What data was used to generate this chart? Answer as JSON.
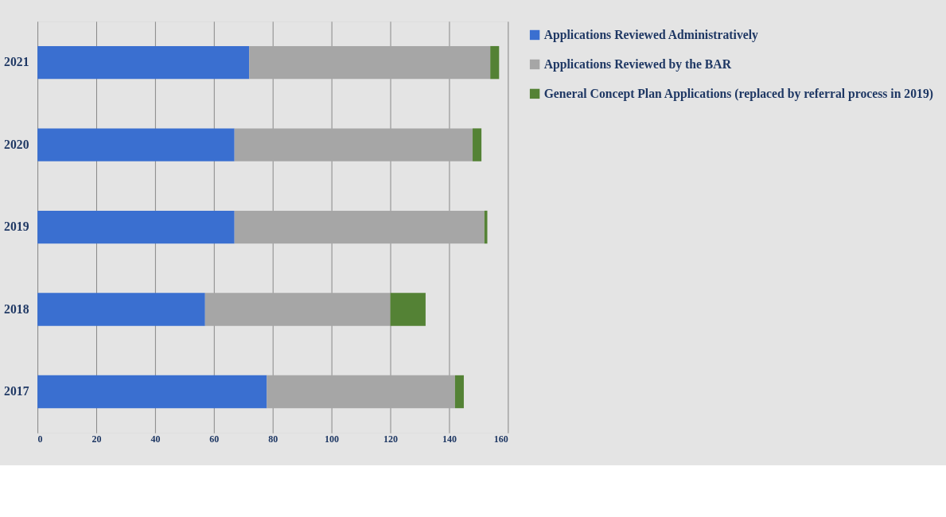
{
  "chart_data": {
    "type": "bar",
    "orientation": "horizontal",
    "stacked": true,
    "categories": [
      "2021",
      "2020",
      "2019",
      "2018",
      "2017"
    ],
    "series": [
      {
        "name": "Applications Reviewed Administratively",
        "color": "#3a6fd0",
        "values": [
          72,
          67,
          67,
          57,
          78
        ]
      },
      {
        "name": "Applications Reviewed by the BAR",
        "color": "#a6a6a6",
        "values": [
          82,
          81,
          85,
          63,
          64
        ]
      },
      {
        "name": "General Concept Plan Applications (replaced by referral process in 2019)",
        "color": "#548235",
        "values": [
          3,
          3,
          1,
          12,
          3
        ]
      }
    ],
    "xlim": [
      0,
      160
    ],
    "xticks": [
      0,
      20,
      40,
      60,
      80,
      100,
      120,
      140,
      160
    ],
    "grid": "x",
    "legend": "right"
  }
}
